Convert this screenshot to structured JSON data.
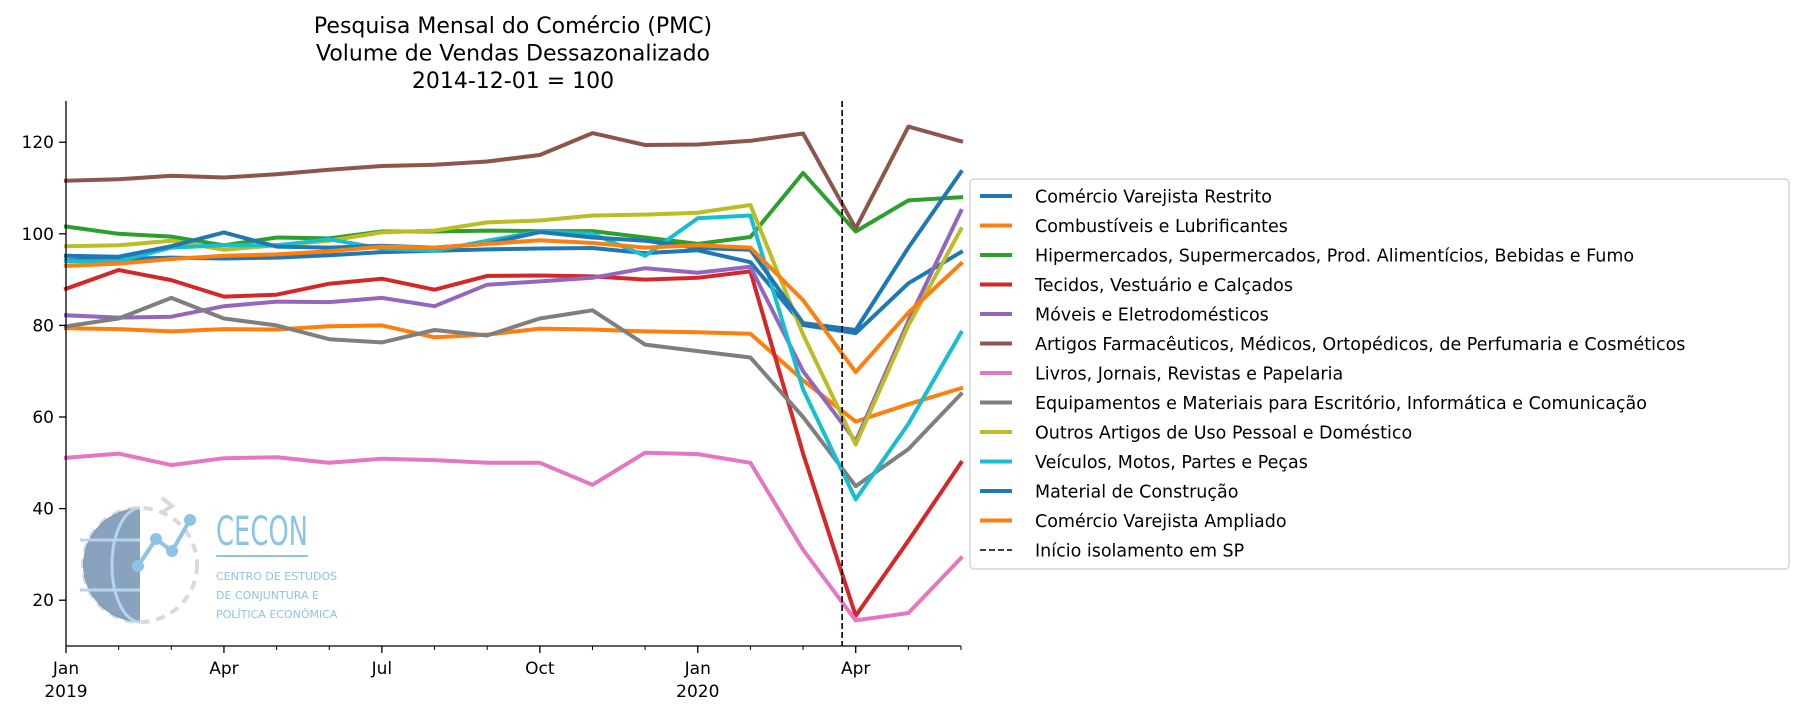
{
  "chart_data": {
    "type": "line",
    "title": [
      "Pesquisa Mensal do Comércio (PMC)",
      "Volume de Vendas Dessazonalizado",
      "2014-12-01 = 100"
    ],
    "xlabel": "",
    "ylabel": "",
    "x": [
      "2019-01",
      "2019-02",
      "2019-03",
      "2019-04",
      "2019-05",
      "2019-06",
      "2019-07",
      "2019-08",
      "2019-09",
      "2019-10",
      "2019-11",
      "2019-12",
      "2020-01",
      "2020-02",
      "2020-03",
      "2020-04",
      "2020-05",
      "2020-06"
    ],
    "xlim": [
      "2019-01",
      "2020-06"
    ],
    "ylim": [
      10,
      129
    ],
    "yticks": [
      20,
      40,
      60,
      80,
      100,
      120
    ],
    "xticks": [
      {
        "x": "2019-01",
        "label": "Jan",
        "year": "2019"
      },
      {
        "x": "2019-04",
        "label": "Apr",
        "year": ""
      },
      {
        "x": "2019-07",
        "label": "Jul",
        "year": ""
      },
      {
        "x": "2019-10",
        "label": "Oct",
        "year": ""
      },
      {
        "x": "2020-01",
        "label": "Jan",
        "year": "2020"
      },
      {
        "x": "2020-04",
        "label": "Apr",
        "year": ""
      }
    ],
    "minor_xticks": [
      "2019-02",
      "2019-03",
      "2019-05",
      "2019-06",
      "2019-08",
      "2019-09",
      "2019-11",
      "2019-12",
      "2020-02",
      "2020-03",
      "2020-05",
      "2020-06"
    ],
    "legend_position": "right",
    "grid": false,
    "series": [
      {
        "name": "Comércio Varejista Restrito",
        "color": "#1f77b4",
        "values": [
          94.2,
          94.5,
          94.8,
          94.6,
          94.8,
          95.3,
          96.0,
          96.3,
          96.6,
          96.8,
          96.9,
          95.8,
          96.4,
          93.8,
          80.1,
          78.3,
          89.2,
          96.0
        ]
      },
      {
        "name": "Combustíveis e Lubrificantes",
        "color": "#ff7f0e",
        "values": [
          79.4,
          79.2,
          78.7,
          79.2,
          79.1,
          79.8,
          80.0,
          77.4,
          78.0,
          79.3,
          79.1,
          78.7,
          78.5,
          78.2,
          68.0,
          59.0,
          62.8,
          66.3
        ]
      },
      {
        "name": "Hipermercados, Supermercados, Prod. Alimentícios, Bebidas e Fumo",
        "color": "#2ca02c",
        "values": [
          101.6,
          100.0,
          99.4,
          97.5,
          99.2,
          99.0,
          100.5,
          100.5,
          100.7,
          100.6,
          100.6,
          99.2,
          97.8,
          99.3,
          113.3,
          100.5,
          107.3,
          108.0
        ]
      },
      {
        "name": "Tecidos, Vestuário e Calçados",
        "color": "#d62728",
        "values": [
          88.0,
          92.1,
          89.9,
          86.3,
          86.7,
          89.1,
          90.2,
          87.8,
          90.8,
          90.9,
          90.7,
          90.0,
          90.4,
          91.8,
          52.0,
          16.6,
          33.0,
          50.0
        ]
      },
      {
        "name": "Móveis e Eletrodomésticos",
        "color": "#9467bd",
        "values": [
          82.2,
          81.7,
          81.9,
          84.2,
          85.2,
          85.1,
          86.0,
          84.2,
          88.9,
          89.6,
          90.4,
          92.5,
          91.5,
          92.8,
          70.0,
          54.7,
          81.0,
          105.0
        ]
      },
      {
        "name": "Artigos Farmacêuticos, Médicos, Ortopédicos, de Perfumaria e Cosméticos",
        "color": "#8c564b",
        "values": [
          111.6,
          111.9,
          112.7,
          112.3,
          113.0,
          114.0,
          114.8,
          115.1,
          115.8,
          117.2,
          122.0,
          119.4,
          119.5,
          120.3,
          121.9,
          101.2,
          123.4,
          120.2
        ]
      },
      {
        "name": "Livros, Jornais, Revistas e Papelaria",
        "color": "#e377c2",
        "values": [
          51.1,
          52.0,
          49.5,
          51.0,
          51.2,
          50.0,
          50.9,
          50.6,
          50.0,
          50.0,
          45.2,
          52.2,
          51.9,
          50.0,
          31.0,
          15.6,
          17.2,
          29.2
        ]
      },
      {
        "name": "Equipamentos e Materiais para Escritório, Informática e Comunicação",
        "color": "#7f7f7f",
        "values": [
          79.8,
          81.5,
          86.0,
          81.5,
          80.0,
          77.0,
          76.3,
          79.0,
          77.8,
          81.5,
          83.3,
          75.8,
          74.4,
          73.0,
          60.0,
          44.9,
          53.0,
          65.0
        ]
      },
      {
        "name": "Outros Artigos de Uso Pessoal e Doméstico",
        "color": "#bcbd22",
        "values": [
          97.3,
          97.5,
          98.5,
          96.5,
          97.5,
          98.5,
          100.3,
          100.7,
          102.5,
          102.9,
          104.0,
          104.2,
          104.6,
          106.3,
          78.0,
          54.0,
          80.0,
          101.0
        ]
      },
      {
        "name": "Veículos, Motos, Partes e Peças",
        "color": "#17becf",
        "values": [
          94.0,
          94.0,
          97.0,
          97.5,
          97.5,
          98.8,
          96.8,
          96.3,
          98.5,
          100.5,
          100.0,
          95.2,
          103.4,
          104.0,
          66.0,
          42.0,
          58.5,
          78.4
        ]
      },
      {
        "name": "Material de Construção",
        "color": "#1f77b4",
        "values": [
          95.2,
          95.0,
          97.3,
          100.3,
          97.2,
          97.0,
          97.4,
          97.0,
          97.8,
          100.4,
          99.2,
          98.5,
          96.9,
          96.5,
          80.5,
          79.0,
          97.0,
          113.5
        ]
      },
      {
        "name": "Comércio Varejista Ampliado",
        "color": "#ff7f0e",
        "values": [
          93.0,
          93.5,
          94.5,
          95.2,
          95.5,
          96.2,
          97.2,
          97.0,
          97.8,
          98.6,
          98.0,
          97.0,
          97.5,
          97.0,
          85.5,
          69.8,
          82.8,
          93.5
        ]
      }
    ],
    "annotations": [
      {
        "type": "vline",
        "x": "2020-03-24",
        "style": "dashed",
        "color": "#000000",
        "label": "Início isolamento em SP"
      }
    ]
  },
  "logo": {
    "name": "CECON",
    "subtitle_lines": [
      "CENTRO DE ESTUDOS",
      "DE CONJUNTURA E",
      "POLÍTICA ECONÔMICA"
    ],
    "color": "#8cc4e6",
    "globe_color": "#6b8cae"
  }
}
